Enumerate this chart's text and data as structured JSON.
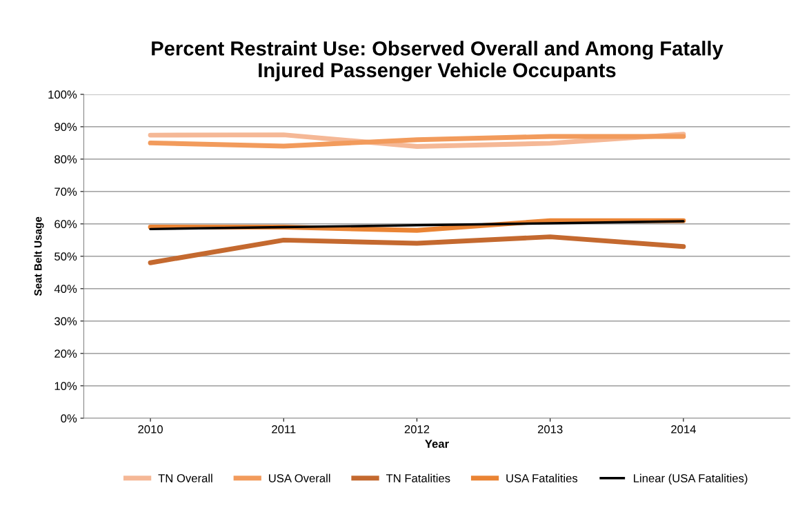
{
  "chart_data": {
    "type": "line",
    "title": "Percent Restraint Use: Observed Overall and Among Fatally\nInjured Passenger Vehicle Occupants",
    "xlabel": "Year",
    "ylabel": "Seat Belt Usage",
    "categories": [
      "2010",
      "2011",
      "2012",
      "2013",
      "2014"
    ],
    "series": [
      {
        "name": "TN Overall",
        "color": "#f5b896",
        "values": [
          87.4,
          87.5,
          83.9,
          84.9,
          87.7
        ]
      },
      {
        "name": "USA Overall",
        "color": "#f29b5c",
        "values": [
          85,
          84,
          86,
          87,
          87
        ]
      },
      {
        "name": "TN Fatalities",
        "color": "#c4692f",
        "values": [
          48,
          55,
          54,
          56,
          53
        ]
      },
      {
        "name": "USA Fatalities",
        "color": "#ea8434",
        "values": [
          59,
          59,
          58,
          61,
          61
        ]
      },
      {
        "name": "Linear (USA Fatalities)",
        "color": "#000000",
        "values": [
          58.4,
          59.0,
          59.6,
          60.2,
          60.8
        ]
      }
    ],
    "ylim": [
      0,
      100
    ],
    "yticks": [
      {
        "value": 0,
        "label": "0%"
      },
      {
        "value": 10,
        "label": "10%"
      },
      {
        "value": 20,
        "label": "20%"
      },
      {
        "value": 30,
        "label": "30%"
      },
      {
        "value": 40,
        "label": "40%"
      },
      {
        "value": 50,
        "label": "50%"
      },
      {
        "value": 60,
        "label": "60%"
      },
      {
        "value": 70,
        "label": "70%"
      },
      {
        "value": 80,
        "label": "80%"
      },
      {
        "value": 90,
        "label": "90%"
      },
      {
        "value": 100,
        "label": "100%"
      }
    ],
    "grid": "y",
    "legend": "bottom",
    "marker": "none",
    "line_style": "solid"
  }
}
